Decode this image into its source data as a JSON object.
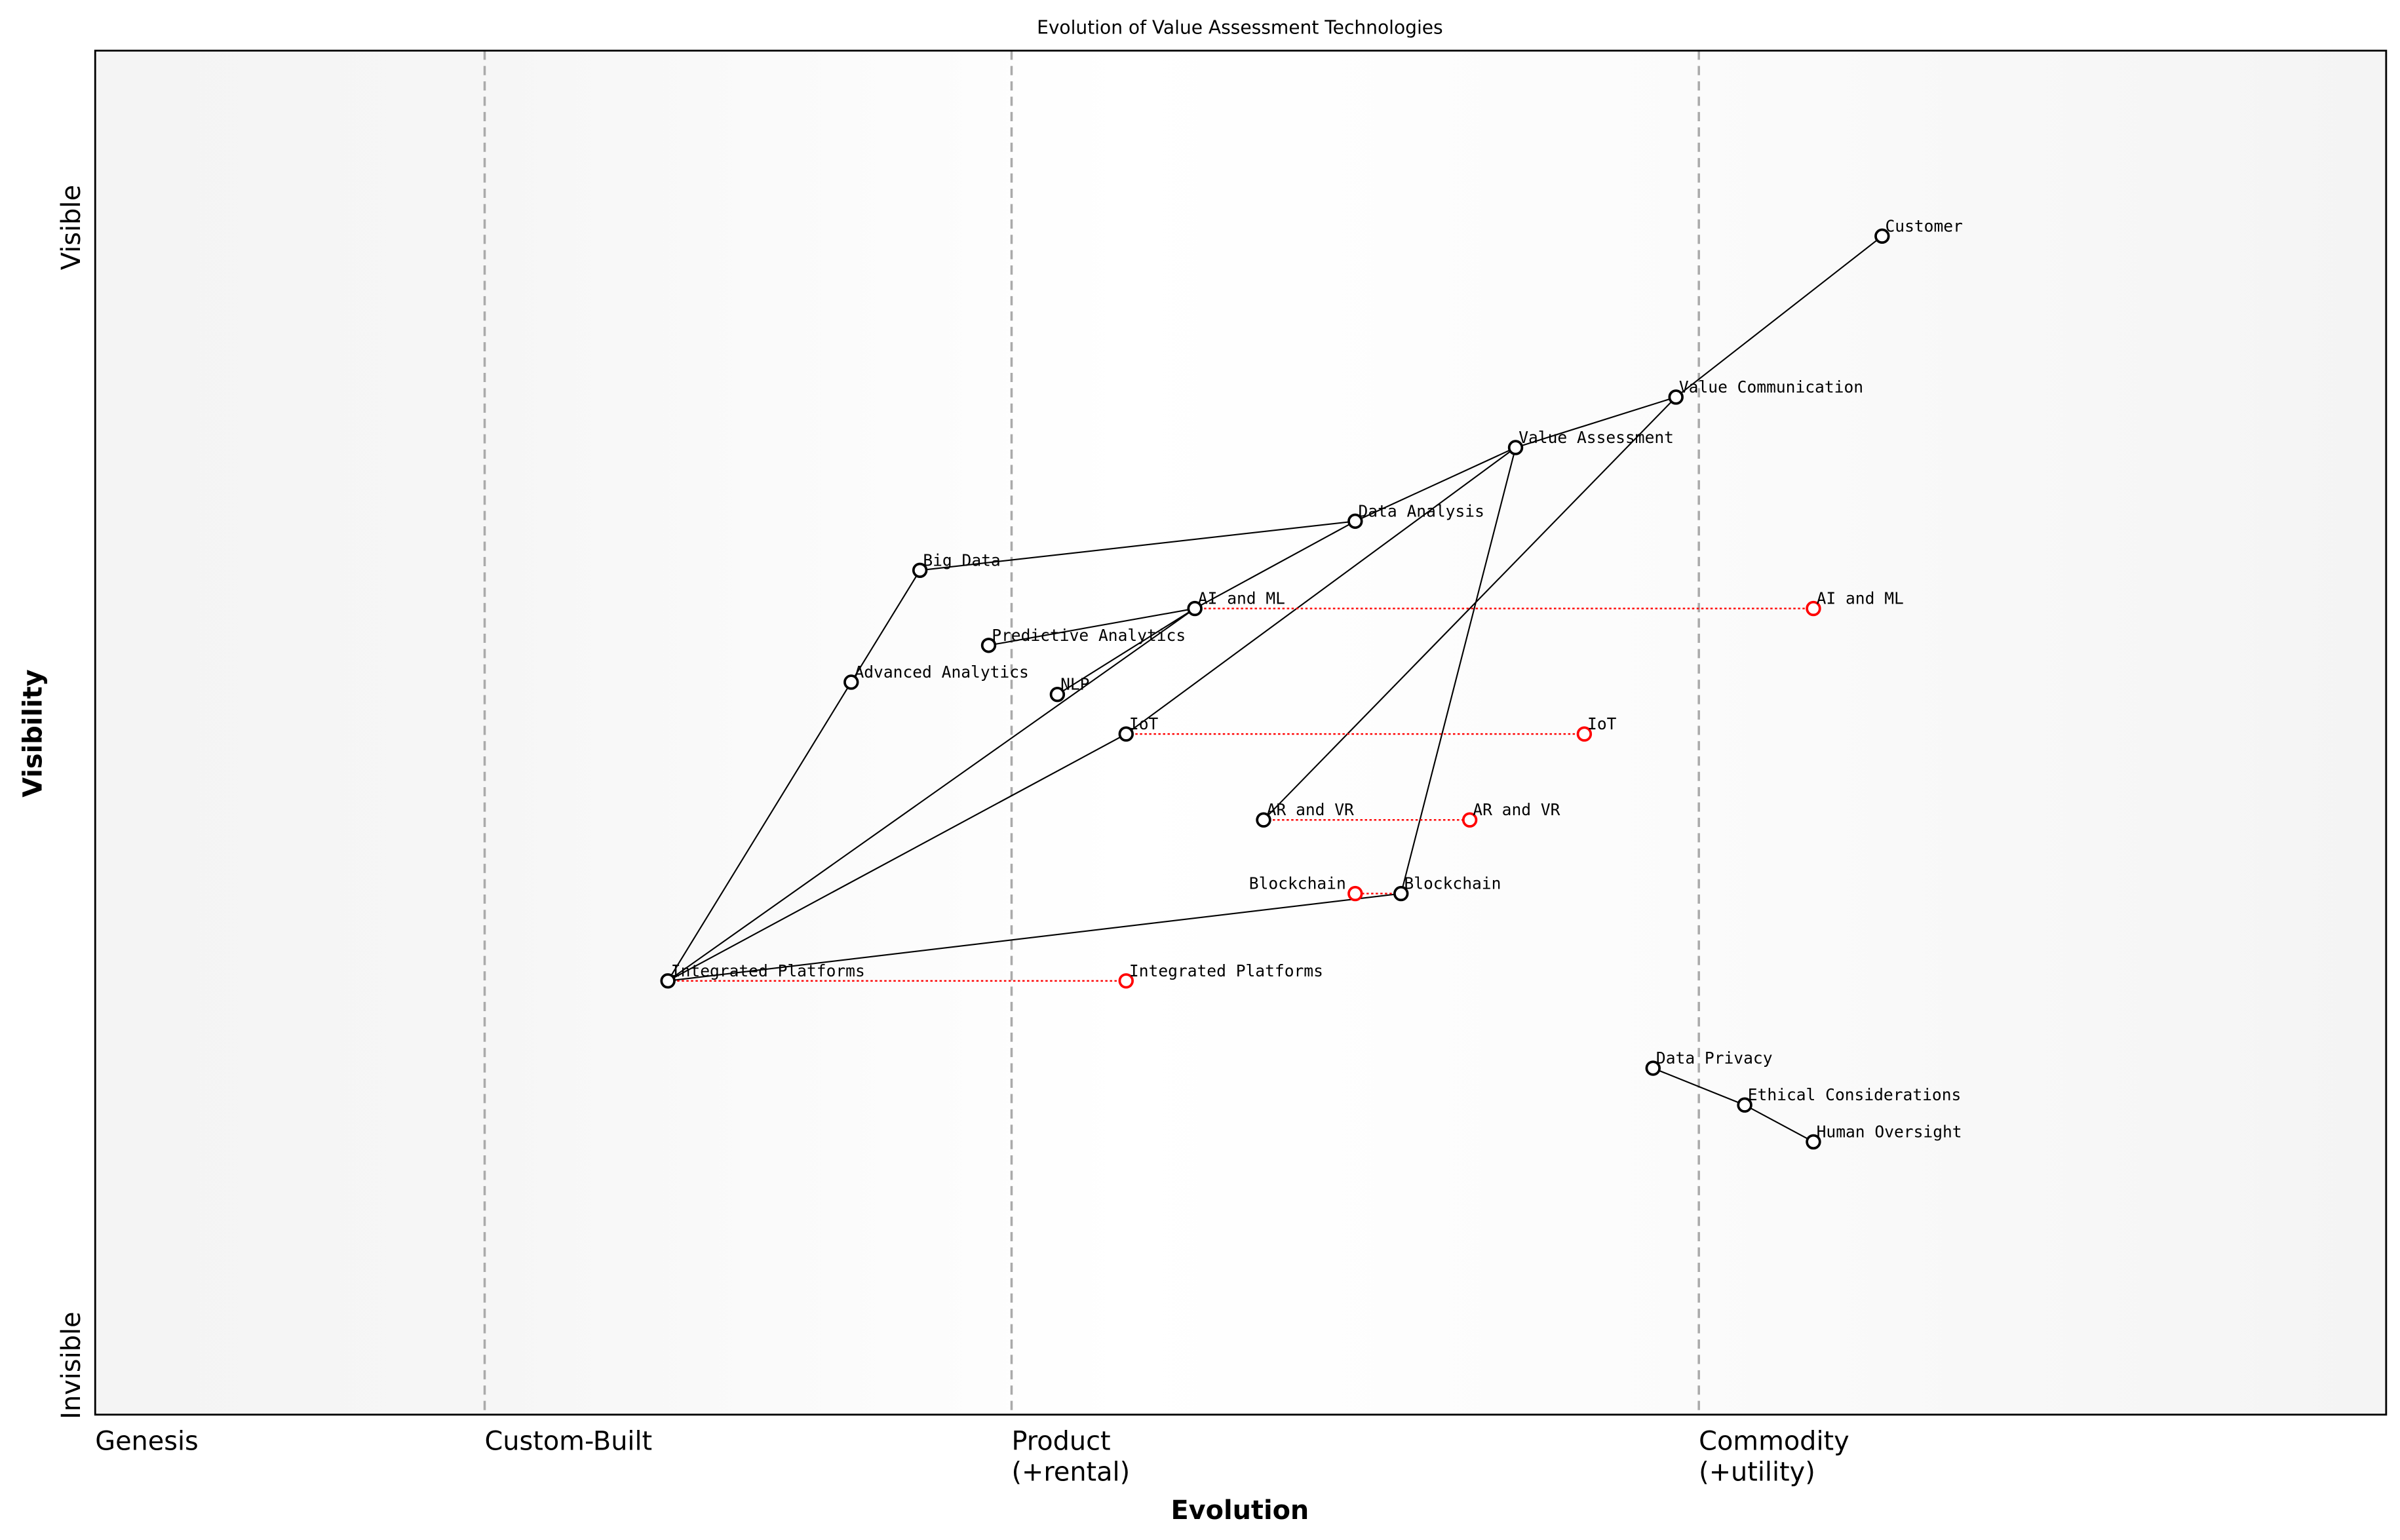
{
  "chart_data": {
    "type": "scatter",
    "title": "Evolution of Value Assessment Technologies",
    "xlabel": "Evolution",
    "ylabel": "Visibility",
    "xlim": [
      0,
      1
    ],
    "ylim": [
      0,
      1
    ],
    "x_stages": [
      {
        "label": "Genesis",
        "sub": "",
        "x": 0.0
      },
      {
        "label": "Custom-Built",
        "sub": "",
        "x": 0.17
      },
      {
        "label": "Product",
        "sub": "(+rental)",
        "x": 0.4
      },
      {
        "label": "Commodity",
        "sub": "(+utility)",
        "x": 0.7
      }
    ],
    "y_labels": {
      "top": "Visible",
      "bottom": "Invisible"
    },
    "colors": {
      "node": "#000000",
      "evolved_node": "#ff0000",
      "stage_line": "#aaaaaa",
      "edge": "#000000"
    },
    "components": [
      {
        "name": "Customer",
        "x": 0.78,
        "y": 0.864
      },
      {
        "name": "Value Communication",
        "x": 0.69,
        "y": 0.746
      },
      {
        "name": "Value Assessment",
        "x": 0.62,
        "y": 0.709
      },
      {
        "name": "Data Analysis",
        "x": 0.55,
        "y": 0.655
      },
      {
        "name": "Big Data",
        "x": 0.36,
        "y": 0.619
      },
      {
        "name": "AI and ML",
        "x": 0.48,
        "y": 0.591
      },
      {
        "name": "Predictive Analytics",
        "x": 0.39,
        "y": 0.564
      },
      {
        "name": "Advanced Analytics",
        "x": 0.33,
        "y": 0.537
      },
      {
        "name": "NLP",
        "x": 0.42,
        "y": 0.528
      },
      {
        "name": "IoT",
        "x": 0.45,
        "y": 0.499
      },
      {
        "name": "AR and VR",
        "x": 0.51,
        "y": 0.436
      },
      {
        "name": "Blockchain",
        "x": 0.57,
        "y": 0.382
      },
      {
        "name": "Integrated Platforms",
        "x": 0.25,
        "y": 0.318
      },
      {
        "name": "Data Privacy",
        "x": 0.68,
        "y": 0.254
      },
      {
        "name": "Ethical Considerations",
        "x": 0.72,
        "y": 0.227
      },
      {
        "name": "Human Oversight",
        "x": 0.75,
        "y": 0.2
      }
    ],
    "evolutions": [
      {
        "name": "AI and ML",
        "to_x": 0.75
      },
      {
        "name": "IoT",
        "to_x": 0.65
      },
      {
        "name": "AR and VR",
        "to_x": 0.6
      },
      {
        "name": "Blockchain",
        "to_x": 0.55
      },
      {
        "name": "Integrated Platforms",
        "to_x": 0.45
      }
    ],
    "links": [
      [
        "Customer",
        "Value Communication"
      ],
      [
        "Value Communication",
        "Value Assessment"
      ],
      [
        "Value Communication",
        "AR and VR"
      ],
      [
        "Value Assessment",
        "Data Analysis"
      ],
      [
        "Value Assessment",
        "Blockchain"
      ],
      [
        "Value Assessment",
        "IoT"
      ],
      [
        "Data Analysis",
        "Big Data"
      ],
      [
        "Data Analysis",
        "AI and ML"
      ],
      [
        "AI and ML",
        "Predictive Analytics"
      ],
      [
        "AI and ML",
        "NLP"
      ],
      [
        "AI and ML",
        "Integrated Platforms"
      ],
      [
        "Big Data",
        "Advanced Analytics"
      ],
      [
        "Advanced Analytics",
        "Integrated Platforms"
      ],
      [
        "IoT",
        "Integrated Platforms"
      ],
      [
        "Blockchain",
        "Integrated Platforms"
      ],
      [
        "Data Privacy",
        "Ethical Considerations"
      ],
      [
        "Ethical Considerations",
        "Human Oversight"
      ]
    ]
  }
}
